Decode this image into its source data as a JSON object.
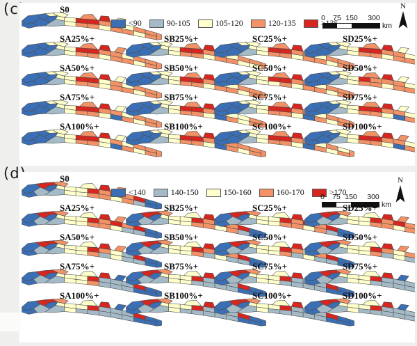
{
  "panels": [
    {
      "id": "c",
      "label": "(c)",
      "north_label": "N",
      "scalebar": {
        "tick_labels": [
          "0",
          "75",
          "150",
          "300"
        ],
        "unit": "km"
      },
      "legend": {
        "items": [
          {
            "label": "<90",
            "color": "#3a6fb5"
          },
          {
            "label": "90-105",
            "color": "#a4bac7"
          },
          {
            "label": "105-120",
            "color": "#ffffcc"
          },
          {
            "label": "120-135",
            "color": "#f29266"
          },
          {
            "label": ">135",
            "color": "#d7261f"
          }
        ]
      },
      "maps": [
        {
          "label": "S0",
          "cells": [
            0,
            0,
            0,
            0,
            2,
            0,
            2,
            2,
            1,
            2,
            4,
            4,
            3,
            3,
            2,
            3,
            3,
            2,
            3,
            3,
            2,
            3,
            3,
            2,
            3,
            3,
            4,
            2,
            3
          ]
        },
        {
          "label": "SA25%+",
          "cells": [
            0,
            0,
            0,
            0,
            2,
            0,
            2,
            2,
            1,
            2,
            4,
            4,
            3,
            3,
            2,
            3,
            3,
            2,
            3,
            3,
            2,
            3,
            3,
            2,
            3,
            3,
            4,
            3,
            3
          ]
        },
        {
          "label": "SA50%+",
          "cells": [
            0,
            0,
            0,
            0,
            2,
            0,
            2,
            2,
            1,
            2,
            4,
            4,
            2,
            3,
            2,
            3,
            3,
            2,
            3,
            3,
            2,
            3,
            3,
            2,
            3,
            3,
            4,
            2,
            3
          ]
        },
        {
          "label": "SA75%+",
          "cells": [
            0,
            0,
            0,
            0,
            2,
            0,
            2,
            2,
            1,
            2,
            4,
            4,
            3,
            3,
            2,
            3,
            3,
            2,
            3,
            3,
            2,
            0,
            3,
            2,
            3,
            3,
            4,
            2,
            3
          ]
        },
        {
          "label": "SA100%+",
          "cells": [
            0,
            0,
            0,
            0,
            2,
            0,
            2,
            2,
            1,
            2,
            4,
            4,
            2,
            3,
            2,
            3,
            3,
            2,
            3,
            3,
            2,
            0,
            3,
            2,
            3,
            3,
            4,
            2,
            3
          ]
        },
        {
          "label": "SB25%+",
          "cells": [
            0,
            0,
            0,
            0,
            2,
            0,
            2,
            2,
            1,
            2,
            4,
            4,
            3,
            3,
            2,
            3,
            3,
            2,
            3,
            3,
            2,
            3,
            3,
            2,
            2,
            3,
            4,
            2,
            3
          ]
        },
        {
          "label": "SB50%+",
          "cells": [
            0,
            0,
            0,
            0,
            2,
            0,
            2,
            2,
            1,
            2,
            4,
            4,
            3,
            2,
            2,
            3,
            3,
            2,
            3,
            3,
            2,
            3,
            3,
            2,
            3,
            3,
            4,
            2,
            3
          ]
        },
        {
          "label": "SB75%+",
          "cells": [
            0,
            0,
            0,
            0,
            2,
            0,
            2,
            2,
            1,
            2,
            4,
            4,
            3,
            3,
            2,
            2,
            3,
            2,
            3,
            3,
            2,
            0,
            3,
            2,
            3,
            3,
            4,
            2,
            3
          ]
        },
        {
          "label": "SB100%+",
          "cells": [
            0,
            0,
            0,
            0,
            2,
            0,
            2,
            2,
            1,
            2,
            4,
            4,
            3,
            3,
            3,
            3,
            3,
            2,
            3,
            3,
            2,
            0,
            3,
            2,
            3,
            3,
            4,
            2,
            3
          ]
        },
        {
          "label": "SC25%+",
          "cells": [
            0,
            0,
            0,
            0,
            2,
            0,
            2,
            2,
            1,
            2,
            4,
            4,
            3,
            3,
            2,
            3,
            3,
            2,
            3,
            3,
            2,
            3,
            3,
            2,
            3,
            3,
            4,
            2,
            3
          ]
        },
        {
          "label": "SC50%+",
          "cells": [
            0,
            0,
            0,
            0,
            2,
            0,
            2,
            2,
            1,
            2,
            4,
            4,
            3,
            3,
            2,
            3,
            3,
            2,
            2,
            3,
            2,
            3,
            3,
            2,
            3,
            3,
            4,
            2,
            3
          ]
        },
        {
          "label": "SC75%+",
          "cells": [
            0,
            0,
            0,
            0,
            2,
            0,
            2,
            2,
            1,
            2,
            4,
            4,
            3,
            3,
            2,
            3,
            3,
            2,
            3,
            3,
            2,
            0,
            3,
            2,
            3,
            3,
            4,
            2,
            3
          ]
        },
        {
          "label": "SC100%+",
          "cells": [
            0,
            0,
            0,
            0,
            2,
            0,
            2,
            2,
            1,
            2,
            4,
            4,
            3,
            3,
            2,
            3,
            2,
            2,
            3,
            3,
            2,
            0,
            3,
            2,
            3,
            3,
            4,
            2,
            3
          ]
        },
        {
          "label": "SD25%+",
          "cells": [
            0,
            0,
            0,
            0,
            2,
            0,
            2,
            2,
            1,
            2,
            4,
            4,
            3,
            3,
            2,
            3,
            3,
            2,
            3,
            3,
            2,
            3,
            3,
            3,
            3,
            3,
            4,
            2,
            3
          ]
        },
        {
          "label": "SD50%+",
          "cells": [
            0,
            0,
            0,
            0,
            2,
            0,
            2,
            2,
            1,
            2,
            4,
            3,
            3,
            3,
            2,
            3,
            3,
            2,
            3,
            3,
            2,
            3,
            3,
            2,
            3,
            3,
            4,
            2,
            3
          ]
        },
        {
          "label": "SD75%+",
          "cells": [
            0,
            0,
            0,
            0,
            2,
            0,
            2,
            2,
            1,
            2,
            4,
            4,
            3,
            3,
            2,
            3,
            3,
            2,
            3,
            3,
            2,
            0,
            3,
            2,
            2,
            3,
            4,
            2,
            3
          ]
        },
        {
          "label": "SD100%+",
          "cells": [
            0,
            0,
            0,
            0,
            2,
            0,
            2,
            2,
            1,
            2,
            4,
            4,
            3,
            3,
            2,
            3,
            3,
            2,
            3,
            3,
            2,
            0,
            3,
            2,
            3,
            3,
            4,
            3,
            3
          ]
        }
      ]
    },
    {
      "id": "d",
      "label": "(d)",
      "north_label": "N",
      "scalebar": {
        "tick_labels": [
          "0",
          "75",
          "150",
          "300"
        ],
        "unit": "km"
      },
      "legend": {
        "items": [
          {
            "label": "<140",
            "color": "#3a6fb5"
          },
          {
            "label": "140-150",
            "color": "#a4bac7"
          },
          {
            "label": "150-160",
            "color": "#ffffcc"
          },
          {
            "label": "160-170",
            "color": "#f29266"
          },
          {
            "label": ">170",
            "color": "#d7261f"
          }
        ]
      },
      "maps": [
        {
          "label": "S0",
          "cells": [
            0,
            0,
            4,
            1,
            4,
            0,
            3,
            2,
            1,
            2,
            2,
            4,
            3,
            4,
            3,
            4,
            0,
            2,
            2,
            3,
            3,
            2,
            3,
            1,
            0,
            2,
            4,
            3,
            0
          ]
        },
        {
          "label": "SA25%+",
          "cells": [
            0,
            0,
            4,
            1,
            4,
            0,
            3,
            2,
            1,
            2,
            2,
            4,
            3,
            4,
            3,
            4,
            0,
            2,
            2,
            3,
            3,
            2,
            1,
            1,
            0,
            2,
            4,
            3,
            0
          ]
        },
        {
          "label": "SA50%+",
          "cells": [
            0,
            0,
            4,
            1,
            4,
            0,
            3,
            2,
            1,
            2,
            2,
            4,
            3,
            2,
            1,
            4,
            0,
            2,
            2,
            3,
            1,
            2,
            1,
            1,
            0,
            2,
            4,
            3,
            0
          ]
        },
        {
          "label": "SA75%+",
          "cells": [
            0,
            0,
            4,
            1,
            4,
            0,
            3,
            2,
            1,
            2,
            2,
            4,
            1,
            1,
            1,
            4,
            0,
            2,
            2,
            3,
            1,
            1,
            1,
            0,
            0,
            2,
            4,
            0,
            0
          ]
        },
        {
          "label": "SA100%+",
          "cells": [
            0,
            0,
            4,
            1,
            4,
            0,
            3,
            2,
            1,
            2,
            2,
            4,
            1,
            1,
            1,
            4,
            0,
            2,
            1,
            1,
            1,
            1,
            1,
            0,
            0,
            2,
            4,
            0,
            0
          ]
        },
        {
          "label": "SB25%+",
          "cells": [
            0,
            0,
            4,
            1,
            4,
            0,
            3,
            2,
            1,
            2,
            2,
            4,
            3,
            4,
            3,
            4,
            0,
            2,
            2,
            3,
            3,
            2,
            3,
            1,
            0,
            2,
            4,
            2,
            0
          ]
        },
        {
          "label": "SB50%+",
          "cells": [
            0,
            0,
            4,
            1,
            4,
            0,
            3,
            2,
            1,
            2,
            2,
            4,
            3,
            2,
            3,
            4,
            0,
            2,
            2,
            3,
            1,
            2,
            1,
            1,
            0,
            2,
            4,
            3,
            0
          ]
        },
        {
          "label": "SB75%+",
          "cells": [
            0,
            0,
            4,
            1,
            4,
            0,
            3,
            2,
            1,
            2,
            2,
            4,
            1,
            1,
            1,
            4,
            0,
            2,
            2,
            1,
            1,
            1,
            1,
            0,
            0,
            2,
            4,
            0,
            0
          ]
        },
        {
          "label": "SB100%+",
          "cells": [
            0,
            0,
            4,
            1,
            4,
            0,
            3,
            2,
            1,
            2,
            2,
            4,
            1,
            1,
            1,
            4,
            0,
            2,
            1,
            1,
            1,
            1,
            1,
            0,
            0,
            2,
            4,
            0,
            0
          ]
        },
        {
          "label": "SC25%+",
          "cells": [
            0,
            0,
            4,
            1,
            4,
            0,
            3,
            2,
            1,
            2,
            2,
            4,
            3,
            4,
            3,
            4,
            0,
            2,
            2,
            3,
            3,
            2,
            3,
            1,
            0,
            2,
            4,
            3,
            0
          ]
        },
        {
          "label": "SC50%+",
          "cells": [
            0,
            0,
            4,
            1,
            4,
            0,
            3,
            2,
            1,
            2,
            2,
            4,
            3,
            2,
            3,
            4,
            0,
            2,
            2,
            3,
            1,
            2,
            1,
            1,
            0,
            2,
            4,
            3,
            0
          ]
        },
        {
          "label": "SC75%+",
          "cells": [
            0,
            0,
            4,
            1,
            4,
            0,
            3,
            2,
            1,
            2,
            2,
            4,
            1,
            1,
            1,
            4,
            0,
            2,
            2,
            1,
            1,
            1,
            1,
            0,
            0,
            2,
            4,
            0,
            0
          ]
        },
        {
          "label": "SC100%+",
          "cells": [
            0,
            0,
            4,
            1,
            4,
            0,
            3,
            2,
            1,
            2,
            2,
            4,
            1,
            1,
            1,
            4,
            0,
            2,
            1,
            1,
            1,
            1,
            1,
            0,
            0,
            2,
            4,
            0,
            0
          ]
        },
        {
          "label": "SD25%+",
          "cells": [
            0,
            0,
            4,
            1,
            4,
            0,
            3,
            2,
            1,
            2,
            2,
            4,
            3,
            4,
            3,
            4,
            0,
            2,
            2,
            3,
            3,
            2,
            3,
            1,
            0,
            2,
            4,
            3,
            0
          ]
        },
        {
          "label": "SD50%+",
          "cells": [
            0,
            0,
            4,
            1,
            4,
            0,
            3,
            2,
            1,
            2,
            2,
            4,
            3,
            2,
            3,
            4,
            0,
            2,
            2,
            3,
            1,
            2,
            1,
            1,
            0,
            2,
            4,
            3,
            0
          ]
        },
        {
          "label": "SD75%+",
          "cells": [
            0,
            0,
            4,
            1,
            4,
            0,
            3,
            2,
            1,
            2,
            2,
            4,
            1,
            1,
            1,
            4,
            0,
            2,
            2,
            1,
            1,
            1,
            1,
            0,
            0,
            2,
            4,
            0,
            0
          ]
        },
        {
          "label": "SD100%+",
          "cells": [
            0,
            0,
            4,
            1,
            4,
            0,
            3,
            2,
            1,
            2,
            2,
            4,
            1,
            1,
            1,
            4,
            0,
            2,
            1,
            1,
            1,
            1,
            1,
            0,
            0,
            2,
            4,
            0,
            0
          ]
        }
      ]
    }
  ]
}
